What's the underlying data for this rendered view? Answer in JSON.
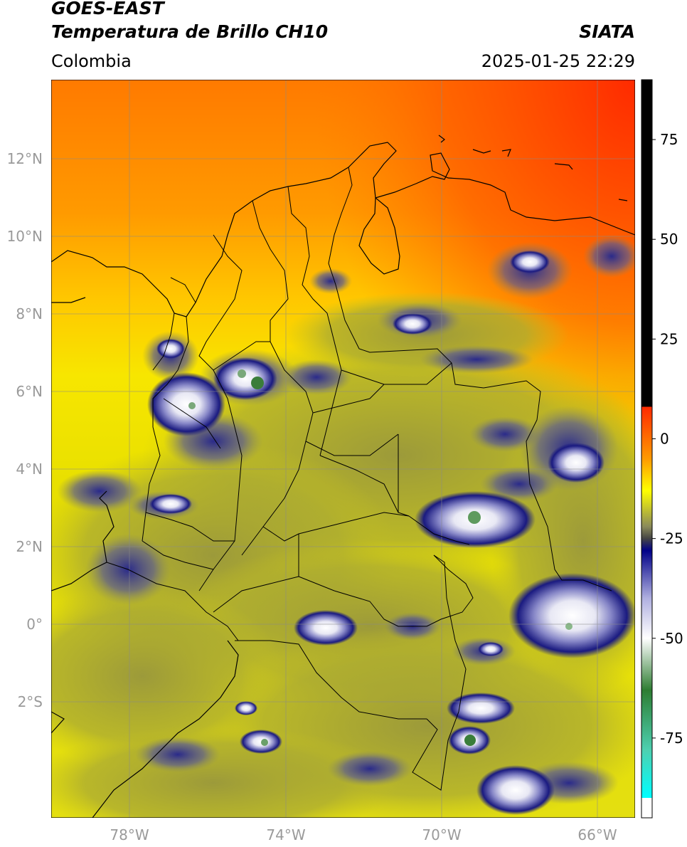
{
  "header": {
    "satellite": "GOES-EAST",
    "product": "Temperatura de Brillo CH10",
    "region": "Colombia",
    "agency": "SIATA",
    "datetime": "2025-01-25 22:29"
  },
  "axes": {
    "lat_labels": [
      "12°N",
      "10°N",
      "8°N",
      "6°N",
      "4°N",
      "2°N",
      "0°",
      "2°S"
    ],
    "lon_labels": [
      "78°W",
      "74°W",
      "70°W",
      "66°W"
    ]
  },
  "colorbar": {
    "ticks": [
      "75",
      "50",
      "25",
      "0",
      "-25",
      "-50",
      "-75"
    ],
    "stops": [
      {
        "value": 90,
        "color": "#000000"
      },
      {
        "value": 8,
        "color": "#000000"
      },
      {
        "value": 8,
        "color": "#ff2a00"
      },
      {
        "value": -5,
        "color": "#ff9a00"
      },
      {
        "value": -13,
        "color": "#ffff00"
      },
      {
        "value": -22,
        "color": "#8a8a5a"
      },
      {
        "value": -25,
        "color": "#444444"
      },
      {
        "value": -28,
        "color": "#000088"
      },
      {
        "value": -40,
        "color": "#b0b0e0"
      },
      {
        "value": -50,
        "color": "#ffffff"
      },
      {
        "value": -63,
        "color": "#2e7d32"
      },
      {
        "value": -78,
        "color": "#4dd0b0"
      },
      {
        "value": -90,
        "color": "#00ffff"
      },
      {
        "value": -90,
        "color": "#ffffff"
      },
      {
        "value": -95,
        "color": "#ffffff"
      }
    ]
  },
  "colors": {
    "warm_top": "#ff3a00",
    "orange": "#ff9000",
    "yellow": "#f0e800",
    "olive": "#b5b32a",
    "cold_blue": "#1a1a80",
    "cold_white": "#f0f0f0",
    "cold_green": "#3a7d3a",
    "border": "#000000",
    "grid": "#888888"
  }
}
